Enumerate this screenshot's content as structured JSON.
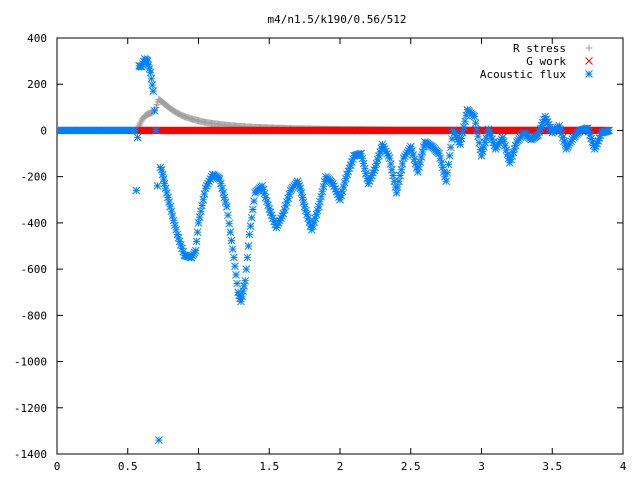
{
  "chart_data": {
    "type": "scatter",
    "title": "m4/n1.5/k190/0.56/512",
    "xlabel": "",
    "ylabel": "",
    "xlim": [
      0,
      4
    ],
    "ylim": [
      -1400,
      400
    ],
    "xticks": [
      0,
      0.5,
      1,
      1.5,
      2,
      2.5,
      3,
      3.5,
      4
    ],
    "xtick_labels": [
      "0",
      "0.5",
      "1",
      "1.5",
      "2",
      "2.5",
      "3",
      "3.5",
      "4"
    ],
    "yticks": [
      -1400,
      -1200,
      -1000,
      -800,
      -600,
      -400,
      -200,
      0,
      200,
      400
    ],
    "ytick_labels": [
      "-1400",
      "-1200",
      "-1000",
      "-800",
      "-600",
      "-400",
      "-200",
      "0",
      "200",
      "400"
    ],
    "grid": false,
    "legend_position": "top-right",
    "series": [
      {
        "name": "R stress",
        "marker": "plus",
        "color": "#a0a0a0",
        "x": [
          0.0,
          0.56,
          0.58,
          0.6,
          0.62,
          0.64,
          0.66,
          0.68,
          0.7,
          0.72,
          0.74,
          0.76,
          0.78,
          0.8,
          0.85,
          0.9,
          0.95,
          1.0,
          1.05,
          1.1,
          1.15,
          1.2,
          1.3,
          1.4,
          1.5,
          1.6,
          1.7,
          1.8,
          2.0,
          2.2,
          2.4,
          2.6,
          2.8,
          3.0,
          3.2,
          3.4,
          3.6,
          3.8,
          3.9
        ],
        "y": [
          0,
          0,
          20,
          45,
          62,
          70,
          75,
          80,
          100,
          135,
          125,
          115,
          105,
          95,
          75,
          60,
          50,
          42,
          35,
          30,
          26,
          22,
          17,
          13,
          11,
          9,
          7,
          6,
          4,
          3,
          2,
          2,
          1,
          1,
          1,
          1,
          1,
          0,
          0
        ]
      },
      {
        "name": "G work",
        "marker": "cross",
        "color": "#ff0000",
        "x": [
          0.56,
          3.9
        ],
        "y": [
          0,
          0
        ]
      },
      {
        "name": "Acoustic flux",
        "marker": "star",
        "color": "#0080ff",
        "x": [
          0.0,
          0.1,
          0.2,
          0.3,
          0.4,
          0.5,
          0.55,
          0.56,
          0.57,
          0.58,
          0.6,
          0.62,
          0.64,
          0.66,
          0.68,
          0.7,
          0.71,
          0.72,
          0.73,
          0.74,
          0.76,
          0.8,
          0.85,
          0.9,
          0.95,
          0.98,
          1.0,
          1.05,
          1.1,
          1.15,
          1.2,
          1.25,
          1.28,
          1.3,
          1.33,
          1.36,
          1.4,
          1.45,
          1.5,
          1.55,
          1.6,
          1.65,
          1.7,
          1.72,
          1.75,
          1.8,
          1.85,
          1.9,
          1.95,
          2.0,
          2.05,
          2.1,
          2.15,
          2.2,
          2.25,
          2.3,
          2.35,
          2.4,
          2.45,
          2.5,
          2.55,
          2.6,
          2.65,
          2.7,
          2.75,
          2.8,
          2.85,
          2.9,
          2.95,
          3.0,
          3.05,
          3.1,
          3.15,
          3.2,
          3.25,
          3.3,
          3.35,
          3.4,
          3.45,
          3.5,
          3.55,
          3.6,
          3.65,
          3.7,
          3.75,
          3.8,
          3.85,
          3.9
        ],
        "y": [
          0,
          0,
          0,
          0,
          0,
          0,
          0,
          -260,
          -30,
          280,
          275,
          310,
          300,
          250,
          170,
          0,
          -240,
          -1340,
          -160,
          -170,
          -230,
          -330,
          -450,
          -540,
          -550,
          -520,
          -400,
          -250,
          -190,
          -210,
          -330,
          -550,
          -700,
          -740,
          -650,
          -450,
          -270,
          -240,
          -340,
          -420,
          -360,
          -260,
          -220,
          -250,
          -330,
          -430,
          -330,
          -200,
          -230,
          -300,
          -190,
          -110,
          -100,
          -230,
          -160,
          -60,
          -120,
          -270,
          -120,
          -70,
          -180,
          -50,
          -70,
          -100,
          -220,
          0,
          -60,
          90,
          60,
          -110,
          5,
          -80,
          -30,
          -140,
          -50,
          -10,
          -40,
          -20,
          60,
          -10,
          20,
          -80,
          -30,
          0,
          10,
          -80,
          -10,
          0
        ]
      }
    ]
  }
}
